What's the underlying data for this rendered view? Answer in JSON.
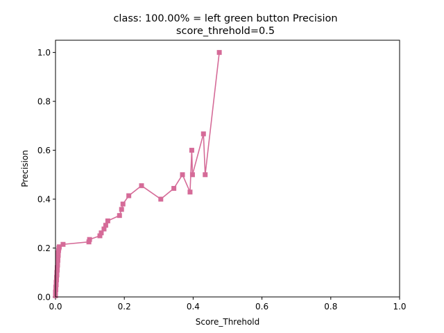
{
  "chart_data": {
    "type": "line",
    "title": "class: 100.00% = left green button Precision",
    "subtitle": "score_threhold=0.5",
    "xlabel": "Score_Threhold",
    "ylabel": "Precision",
    "xlim": [
      0.0,
      1.0
    ],
    "ylim": [
      0.0,
      1.05
    ],
    "xticks": [
      "0.0",
      "0.2",
      "0.4",
      "0.6",
      "0.8",
      "1.0"
    ],
    "yticks": [
      "0.0",
      "0.2",
      "0.4",
      "0.6",
      "0.8",
      "1.0"
    ],
    "xtick_values": [
      0.0,
      0.2,
      0.4,
      0.6,
      0.8,
      1.0
    ],
    "ytick_values": [
      0.0,
      0.2,
      0.4,
      0.6,
      0.8,
      1.0
    ],
    "grid": false,
    "legend": "none",
    "series_color": "#d56b98",
    "marker": "square",
    "x": [
      0.0,
      0.0,
      0.001,
      0.001,
      0.002,
      0.002,
      0.003,
      0.003,
      0.004,
      0.004,
      0.005,
      0.005,
      0.006,
      0.006,
      0.007,
      0.007,
      0.008,
      0.008,
      0.009,
      0.01,
      0.011,
      0.022,
      0.097,
      0.099,
      0.129,
      0.133,
      0.141,
      0.146,
      0.152,
      0.186,
      0.192,
      0.196,
      0.213,
      0.25,
      0.306,
      0.344,
      0.369,
      0.391,
      0.396,
      0.398,
      0.43,
      0.435,
      0.476
    ],
    "y": [
      0.005,
      0.02,
      0.03,
      0.04,
      0.05,
      0.06,
      0.07,
      0.08,
      0.09,
      0.1,
      0.11,
      0.12,
      0.13,
      0.14,
      0.15,
      0.16,
      0.17,
      0.18,
      0.19,
      0.2,
      0.205,
      0.215,
      0.225,
      0.235,
      0.25,
      0.262,
      0.278,
      0.293,
      0.311,
      0.333,
      0.358,
      0.38,
      0.414,
      0.455,
      0.4,
      0.444,
      0.5,
      0.429,
      0.6,
      0.5,
      0.667,
      0.5,
      1.0
    ]
  }
}
